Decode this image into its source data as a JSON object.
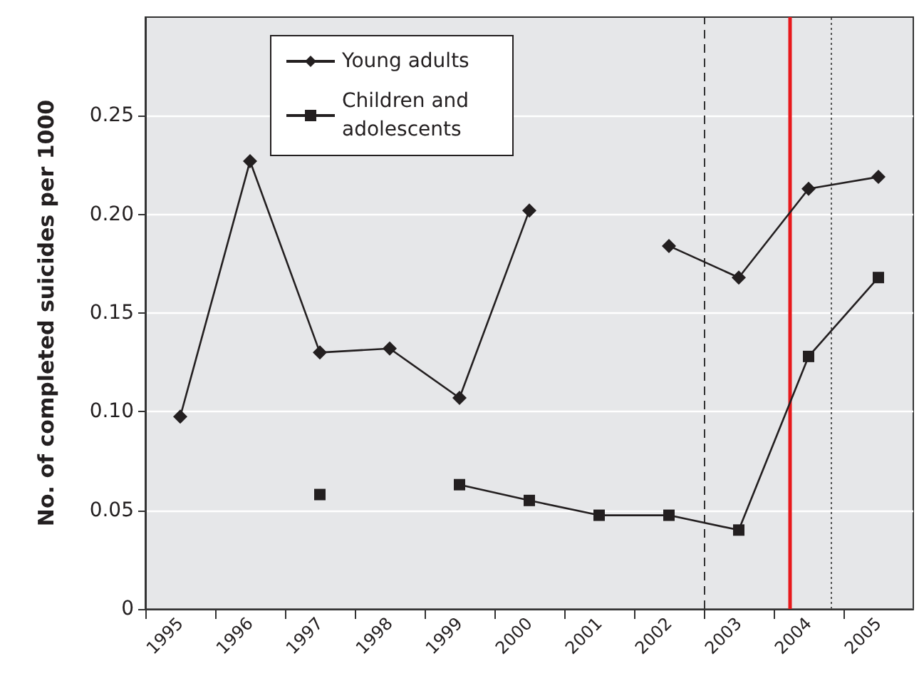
{
  "chart_data": {
    "type": "line",
    "ylabel": "No. of completed suicides per 1000",
    "x": [
      1995,
      1996,
      1997,
      1998,
      1999,
      2000,
      2001,
      2002,
      2003,
      2004,
      2005
    ],
    "xlim": [
      1994.5,
      2005.5
    ],
    "xticks": [
      {
        "value": 1994.5,
        "label": null
      },
      1995,
      {
        "value": 1995.5,
        "label": null
      },
      1996,
      {
        "value": 1996.5,
        "label": null
      },
      1997,
      {
        "value": 1997.5,
        "label": null
      },
      1998,
      {
        "value": 1998.5,
        "label": null
      },
      1999,
      {
        "value": 1999.5,
        "label": null
      },
      2000,
      {
        "value": 2000.5,
        "label": null
      },
      2001,
      {
        "value": 2001.5,
        "label": null
      },
      2002,
      {
        "value": 2002.5,
        "label": null
      },
      2003,
      {
        "value": 2003.5,
        "label": null
      },
      2004,
      {
        "value": 2004.5,
        "label": null
      },
      2005
    ],
    "ylim": [
      0,
      0.3
    ],
    "yticks": [
      0,
      0.05,
      {
        "value": 0.1,
        "label": "0.10"
      },
      0.15,
      {
        "value": 0.2,
        "label": "0.20"
      },
      0.25
    ],
    "series": [
      {
        "name": "Young adults",
        "color": "#231f20",
        "marker": "diamond",
        "values": [
          0.0975,
          0.227,
          0.13,
          0.132,
          0.107,
          0.202,
          null,
          0.184,
          0.168,
          0.213,
          0.219
        ]
      },
      {
        "name": "Children and adolescents",
        "color": "#231f20",
        "marker": "square",
        "values": [
          null,
          null,
          0.058,
          null,
          0.063,
          0.055,
          0.0475,
          0.0475,
          0.04,
          0.128,
          0.168
        ]
      }
    ],
    "ref_lines": [
      {
        "axis": "x",
        "value": 2002.5,
        "color": "#333333",
        "line_style": "dashed"
      },
      {
        "axis": "x",
        "value": 2003.72,
        "color": "#e8191c",
        "line_style": "solid"
      },
      {
        "axis": "x",
        "value": 2004.33,
        "color": "#555555",
        "line_style": "dotted"
      }
    ],
    "grid": "y",
    "legend": "top left",
    "line_style": "solid"
  }
}
